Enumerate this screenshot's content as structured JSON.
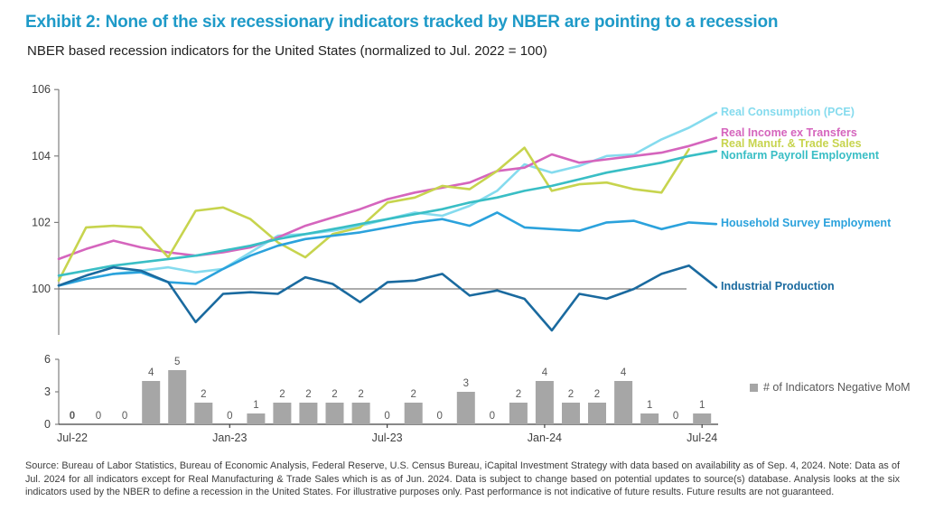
{
  "colors": {
    "title": "#1e9ac8",
    "axis": "#7f7f7f",
    "zero_line": "#595959",
    "tick_label": "#404040",
    "bar_value_label": "#595959",
    "source_text": "#3d3d3d"
  },
  "chart_data": [
    {
      "type": "line",
      "title": "Exhibit 2: None of the six recessionary indicators tracked by NBER are pointing to a recession",
      "subtitle": "NBER based recession indicators for the United States (normalized to Jul. 2022 = 100)",
      "x": [
        "Jul-22",
        "Aug-22",
        "Sep-22",
        "Oct-22",
        "Nov-22",
        "Dec-22",
        "Jan-23",
        "Feb-23",
        "Mar-23",
        "Apr-23",
        "May-23",
        "Jun-23",
        "Jul-23",
        "Aug-23",
        "Sep-23",
        "Oct-23",
        "Nov-23",
        "Dec-23",
        "Jan-24",
        "Feb-24",
        "Mar-24",
        "Apr-24",
        "May-24",
        "Jun-24",
        "Jul-24"
      ],
      "y_ticks": [
        100,
        102,
        104,
        106
      ],
      "ylim": [
        98.3,
        106
      ],
      "grid": false,
      "legend_position": "right-of-line-ends",
      "series": [
        {
          "name": "Real Consumption (PCE)",
          "color": "#85dbee",
          "values": [
            100.1,
            100.3,
            100.45,
            100.55,
            100.65,
            100.5,
            100.6,
            101.1,
            101.6,
            101.65,
            101.75,
            101.9,
            102.1,
            102.3,
            102.2,
            102.5,
            102.95,
            103.75,
            103.5,
            103.7,
            104.0,
            104.05,
            104.5,
            104.85,
            105.3
          ]
        },
        {
          "name": "Real Income ex Transfers",
          "color": "#d565bd",
          "values": [
            100.9,
            101.2,
            101.45,
            101.25,
            101.1,
            101.0,
            101.1,
            101.25,
            101.55,
            101.9,
            102.15,
            102.4,
            102.7,
            102.9,
            103.05,
            103.2,
            103.55,
            103.65,
            104.05,
            103.8,
            103.9,
            104.0,
            104.1,
            104.3,
            104.55
          ]
        },
        {
          "name": "Real Manuf. & Trade Sales",
          "color": "#c7d44e",
          "values": [
            100.25,
            101.85,
            101.9,
            101.85,
            100.95,
            102.35,
            102.45,
            102.1,
            101.4,
            100.95,
            101.65,
            101.85,
            102.6,
            102.75,
            103.1,
            103.0,
            103.55,
            104.25,
            102.95,
            103.15,
            103.2,
            103.0,
            102.9,
            104.2
          ]
        },
        {
          "name": "Nonfarm Payroll Employment",
          "color": "#39bec5",
          "values": [
            100.4,
            100.55,
            100.7,
            100.8,
            100.9,
            101.0,
            101.15,
            101.3,
            101.5,
            101.65,
            101.8,
            101.95,
            102.1,
            102.25,
            102.4,
            102.6,
            102.75,
            102.95,
            103.1,
            103.3,
            103.5,
            103.65,
            103.8,
            104.0,
            104.15
          ]
        },
        {
          "name": "Household Survey Employment",
          "color": "#2ba2dc",
          "values": [
            100.1,
            100.3,
            100.45,
            100.5,
            100.2,
            100.15,
            100.6,
            101.0,
            101.3,
            101.5,
            101.6,
            101.7,
            101.85,
            102.0,
            102.1,
            101.9,
            102.3,
            101.85,
            101.8,
            101.75,
            102.0,
            102.05,
            101.8,
            102.0,
            101.95
          ]
        },
        {
          "name": "Industrial Production",
          "color": "#1a6a9f",
          "values": [
            100.1,
            100.4,
            100.65,
            100.55,
            100.2,
            99.0,
            99.85,
            99.9,
            99.85,
            100.35,
            100.15,
            99.6,
            100.2,
            100.25,
            100.45,
            99.8,
            99.95,
            99.7,
            98.75,
            99.85,
            99.7,
            100.0,
            100.45,
            100.7,
            100.05
          ]
        }
      ]
    },
    {
      "type": "bar",
      "categories": [
        "Jul-22",
        "Aug-22",
        "Sep-22",
        "Oct-22",
        "Nov-22",
        "Dec-22",
        "Jan-23",
        "Feb-23",
        "Mar-23",
        "Apr-23",
        "May-23",
        "Jun-23",
        "Jul-23",
        "Aug-23",
        "Sep-23",
        "Oct-23",
        "Nov-23",
        "Dec-23",
        "Jan-24",
        "Feb-24",
        "Mar-24",
        "Apr-24",
        "May-24",
        "Jun-24",
        "Jul-24"
      ],
      "values": [
        0,
        0,
        0,
        4,
        5,
        2,
        0,
        1,
        2,
        2,
        2,
        2,
        0,
        2,
        0,
        3,
        0,
        2,
        4,
        2,
        2,
        4,
        1,
        0,
        1
      ],
      "legend": "# of Indicators Negative MoM",
      "bar_color": "#a6a6a6",
      "y_ticks": [
        0,
        3,
        6
      ],
      "ylim": [
        0,
        6
      ],
      "x_axis_labels": [
        "Jul-22",
        "Jan-23",
        "Jul-23",
        "Jan-24",
        "Jul-24"
      ],
      "x_axis_label_indices": [
        0,
        6,
        12,
        18,
        24
      ]
    }
  ],
  "source_note": "Source: Bureau of Labor Statistics, Bureau of Economic Analysis, Federal Reserve, U.S. Census Bureau, iCapital Investment Strategy with data based on availability as of Sep. 4, 2024. Note: Data as of Jul. 2024 for all indicators except for Real Manufacturing & Trade Sales which is as of Jun. 2024. Data is subject to change based on potential updates to source(s) database. Analysis looks at the six indicators used by the NBER to define a recession in the United States. For illustrative purposes only. Past performance is not indicative of future results. Future results are not guaranteed."
}
